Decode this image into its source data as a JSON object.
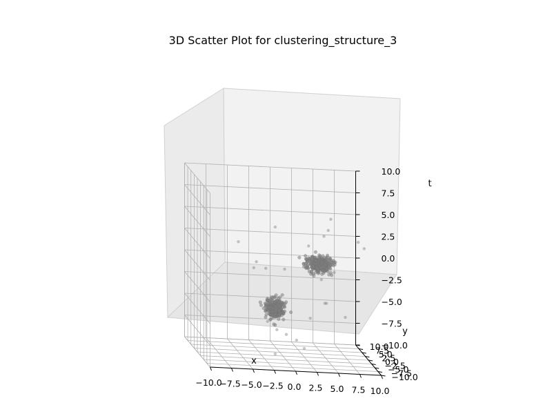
{
  "chart_data": {
    "type": "scatter",
    "title": "3D Scatter Plot for clustering_structure_3",
    "xlabel": "x",
    "ylabel": "y",
    "zlabel": "t",
    "xlim": [
      -10,
      10
    ],
    "ylim": [
      -10,
      10
    ],
    "zlim": [
      -10,
      10
    ],
    "x_ticks": [
      "−10.0",
      "−7.5",
      "−5.0",
      "−2.5",
      "0.0",
      "2.5",
      "5.0",
      "7.5",
      "10.0"
    ],
    "y_ticks": [
      "−10.0",
      "−7.5",
      "−5.0",
      "−2.5",
      "0.0",
      "2.5",
      "5.0",
      "7.5",
      "10.0"
    ],
    "z_ticks": [
      "−10.0",
      "−7.5",
      "−5.0",
      "−2.5",
      "0.0",
      "2.5",
      "5.0",
      "7.5",
      "10.0"
    ],
    "grid": true,
    "point_color": "#808080",
    "clusters": [
      {
        "center": [
          -0.9,
          0.0,
          -4.6
        ],
        "spread": [
          0.55,
          0.55,
          0.55
        ],
        "count": 320
      },
      {
        "center": [
          4.2,
          0.0,
          0.7
        ],
        "spread": [
          0.75,
          0.55,
          0.45
        ],
        "count": 360
      }
    ],
    "outliers": [
      [
        -5.2,
        0.0,
        2.9
      ],
      [
        -0.9,
        0.0,
        4.8
      ],
      [
        -3.1,
        0.0,
        0.7
      ],
      [
        -2.0,
        0.0,
        0.0
      ],
      [
        0.2,
        0.0,
        0.0
      ],
      [
        -3.4,
        0.0,
        0.0
      ],
      [
        3.0,
        0.0,
        2.8
      ],
      [
        5.3,
        0.0,
        4.7
      ],
      [
        5.6,
        0.0,
        6.0
      ],
      [
        4.8,
        0.0,
        4.0
      ],
      [
        4.5,
        0.0,
        -1.0
      ],
      [
        6.0,
        0.0,
        -0.1
      ],
      [
        4.9,
        0.0,
        -3.7
      ],
      [
        5.1,
        0.0,
        -3.7
      ],
      [
        3.2,
        0.0,
        -5.5
      ],
      [
        7.3,
        0.0,
        -5.2
      ],
      [
        8.8,
        0.0,
        3.5
      ],
      [
        9.5,
        0.0,
        2.8
      ],
      [
        1.6,
        0.0,
        -8.1
      ],
      [
        2.5,
        0.0,
        -9.0
      ],
      [
        -0.7,
        0.0,
        -7.0
      ],
      [
        -1.8,
        0.0,
        -6.1
      ],
      [
        0.4,
        0.0,
        -7.5
      ],
      [
        -0.9,
        0.0,
        -9.8
      ]
    ]
  }
}
